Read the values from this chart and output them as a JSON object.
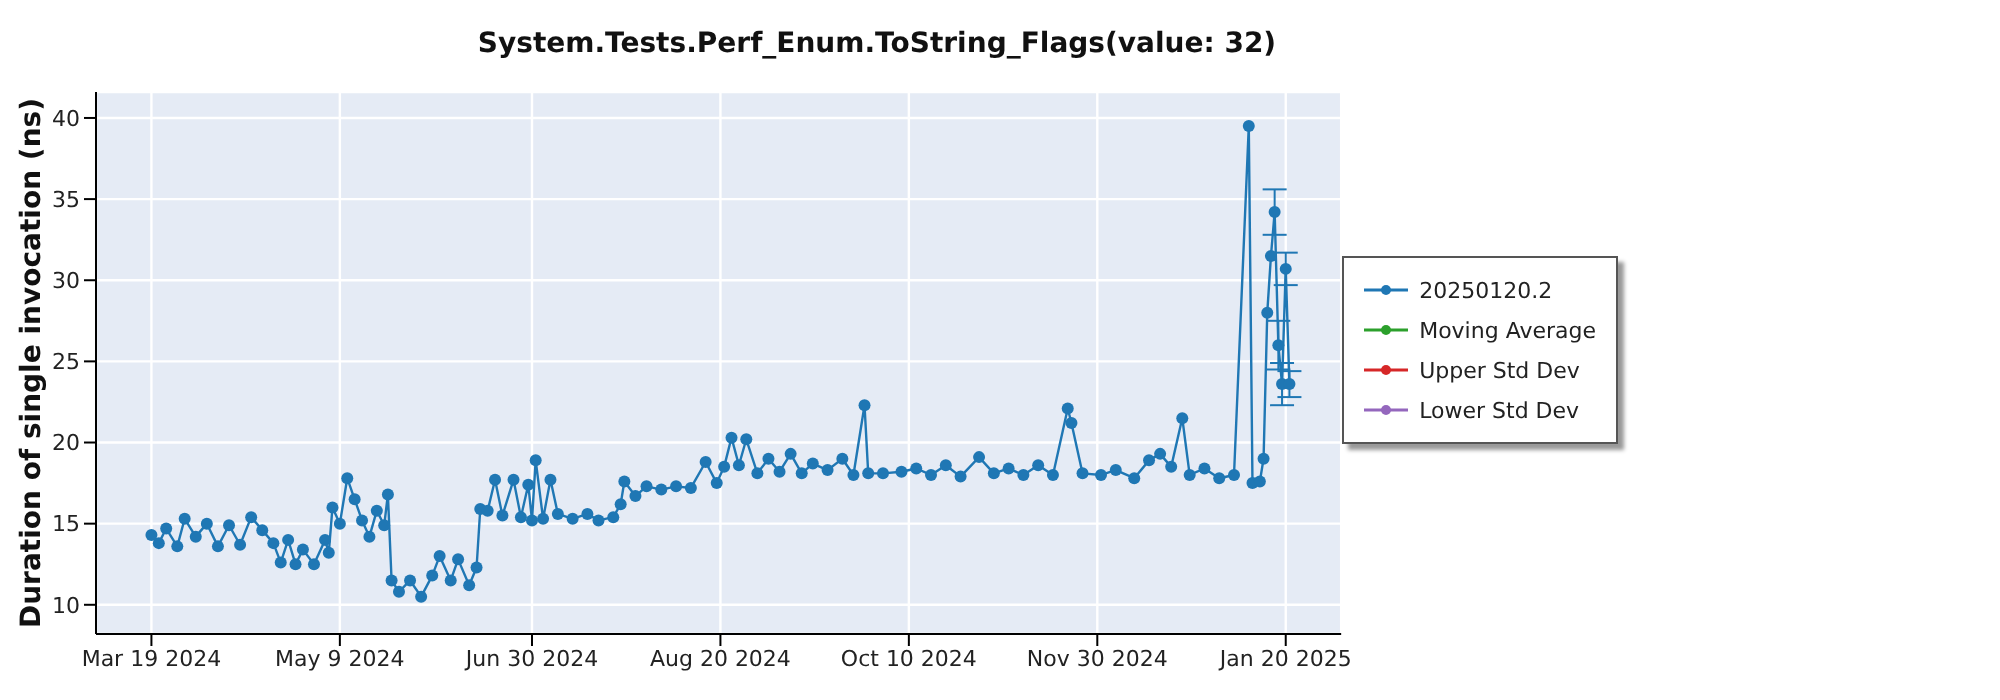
{
  "chart_data": {
    "type": "line",
    "title": "System.Tests.Perf_Enum.ToString_Flags(value: 32)",
    "ylabel": "Duration of single invocation (ns)",
    "x": [
      "2024-03-19",
      "2024-03-21",
      "2024-03-23",
      "2024-03-26",
      "2024-03-28",
      "2024-03-31",
      "2024-04-03",
      "2024-04-06",
      "2024-04-09",
      "2024-04-12",
      "2024-04-15",
      "2024-04-18",
      "2024-04-21",
      "2024-04-23",
      "2024-04-25",
      "2024-04-27",
      "2024-04-29",
      "2024-05-02",
      "2024-05-05",
      "2024-05-06",
      "2024-05-07",
      "2024-05-09",
      "2024-05-11",
      "2024-05-13",
      "2024-05-15",
      "2024-05-17",
      "2024-05-19",
      "2024-05-21",
      "2024-05-22",
      "2024-05-23",
      "2024-05-25",
      "2024-05-28",
      "2024-05-31",
      "2024-06-03",
      "2024-06-05",
      "2024-06-08",
      "2024-06-10",
      "2024-06-13",
      "2024-06-15",
      "2024-06-16",
      "2024-06-18",
      "2024-06-20",
      "2024-06-22",
      "2024-06-25",
      "2024-06-27",
      "2024-06-29",
      "2024-06-30",
      "2024-07-01",
      "2024-07-03",
      "2024-07-05",
      "2024-07-07",
      "2024-07-11",
      "2024-07-15",
      "2024-07-18",
      "2024-07-22",
      "2024-07-24",
      "2024-07-25",
      "2024-07-28",
      "2024-07-31",
      "2024-08-04",
      "2024-08-08",
      "2024-08-12",
      "2024-08-16",
      "2024-08-19",
      "2024-08-21",
      "2024-08-23",
      "2024-08-25",
      "2024-08-27",
      "2024-08-30",
      "2024-09-02",
      "2024-09-05",
      "2024-09-08",
      "2024-09-11",
      "2024-09-14",
      "2024-09-18",
      "2024-09-22",
      "2024-09-25",
      "2024-09-28",
      "2024-09-29",
      "2024-10-03",
      "2024-10-08",
      "2024-10-12",
      "2024-10-16",
      "2024-10-20",
      "2024-10-24",
      "2024-10-29",
      "2024-11-02",
      "2024-11-06",
      "2024-11-10",
      "2024-11-14",
      "2024-11-18",
      "2024-11-22",
      "2024-11-23",
      "2024-11-26",
      "2024-12-01",
      "2024-12-05",
      "2024-12-10",
      "2024-12-14",
      "2024-12-17",
      "2024-12-20",
      "2024-12-23",
      "2024-12-25",
      "2024-12-29",
      "2025-01-02",
      "2025-01-06",
      "2025-01-10",
      "2025-01-11",
      "2025-01-13",
      "2025-01-14",
      "2025-01-15",
      "2025-01-16",
      "2025-01-17",
      "2025-01-18",
      "2025-01-19",
      "2025-01-20",
      "2025-01-21"
    ],
    "series": [
      {
        "name": "20250120.2",
        "color": "#1f77b4",
        "values": [
          14.3,
          13.8,
          14.7,
          13.6,
          15.3,
          14.2,
          15.0,
          13.6,
          14.9,
          13.7,
          15.4,
          14.6,
          13.8,
          12.6,
          14.0,
          12.5,
          13.4,
          12.5,
          14.0,
          13.2,
          16.0,
          15.0,
          17.8,
          16.5,
          15.2,
          14.2,
          15.8,
          14.9,
          16.8,
          11.5,
          10.8,
          11.5,
          10.5,
          11.8,
          13.0,
          11.5,
          12.8,
          11.2,
          12.3,
          15.9,
          15.8,
          17.7,
          15.5,
          17.7,
          15.4,
          17.4,
          15.2,
          18.9,
          15.3,
          17.7,
          15.6,
          15.3,
          15.6,
          15.2,
          15.4,
          16.2,
          17.6,
          16.7,
          17.3,
          17.1,
          17.3,
          17.2,
          18.8,
          17.5,
          18.5,
          20.3,
          18.6,
          20.2,
          18.1,
          19.0,
          18.2,
          19.3,
          18.1,
          18.7,
          18.3,
          19.0,
          18.0,
          22.3,
          18.1,
          18.1,
          18.2,
          18.4,
          18.0,
          18.6,
          17.9,
          19.1,
          18.1,
          18.4,
          18.0,
          18.6,
          18.0,
          22.1,
          21.2,
          18.1,
          18.0,
          18.3,
          17.8,
          18.9,
          19.3,
          18.5,
          21.5,
          18.0,
          18.4,
          17.8,
          18.0,
          39.5,
          17.5,
          17.6,
          19.0,
          28.0,
          31.5,
          34.2,
          26.0,
          23.6,
          30.7,
          23.6
        ],
        "errors": [
          null,
          null,
          null,
          null,
          null,
          null,
          null,
          null,
          null,
          null,
          null,
          null,
          null,
          null,
          null,
          null,
          null,
          null,
          null,
          null,
          null,
          null,
          null,
          null,
          null,
          null,
          null,
          null,
          null,
          null,
          null,
          null,
          null,
          null,
          null,
          null,
          null,
          null,
          null,
          null,
          null,
          null,
          null,
          null,
          null,
          null,
          null,
          null,
          null,
          null,
          null,
          null,
          null,
          null,
          null,
          null,
          null,
          null,
          null,
          null,
          null,
          null,
          null,
          null,
          null,
          null,
          null,
          null,
          null,
          null,
          null,
          null,
          null,
          null,
          null,
          null,
          null,
          null,
          null,
          null,
          null,
          null,
          null,
          null,
          null,
          null,
          null,
          null,
          null,
          null,
          null,
          null,
          null,
          null,
          null,
          null,
          null,
          null,
          null,
          null,
          null,
          null,
          null,
          null,
          null,
          null,
          null,
          null,
          null,
          null,
          null,
          1.4,
          1.5,
          1.3,
          1.0,
          0.8
        ]
      },
      {
        "name": "Moving Average",
        "color": "#2ca02c",
        "values": [
          null,
          null,
          null,
          null,
          null,
          null,
          null,
          null,
          null,
          null,
          null,
          null,
          null,
          null,
          null,
          null,
          null,
          null,
          null,
          null,
          null,
          null,
          null,
          null,
          null,
          null,
          null,
          null,
          null,
          null,
          null,
          null,
          null,
          null,
          null,
          null,
          null,
          null,
          null,
          null,
          null,
          null,
          null,
          null,
          null,
          null,
          null,
          null,
          null,
          null,
          null,
          null,
          null,
          null,
          null,
          null,
          null,
          null,
          null,
          null,
          null,
          null,
          null,
          null,
          null,
          null,
          null,
          null,
          null,
          null,
          null,
          null,
          null,
          null,
          null,
          null,
          null,
          null,
          null,
          null,
          null,
          null,
          null,
          null,
          null,
          null,
          null,
          null,
          null,
          null,
          null,
          null,
          null,
          null,
          null,
          null,
          null,
          null,
          null,
          null,
          null,
          null,
          null,
          null,
          null,
          null,
          null,
          null,
          null,
          null,
          null,
          null,
          null,
          null,
          null,
          null
        ]
      },
      {
        "name": "Upper Std Dev",
        "color": "#d62728",
        "values": [
          null,
          null,
          null,
          null,
          null,
          null,
          null,
          null,
          null,
          null,
          null,
          null,
          null,
          null,
          null,
          null,
          null,
          null,
          null,
          null,
          null,
          null,
          null,
          null,
          null,
          null,
          null,
          null,
          null,
          null,
          null,
          null,
          null,
          null,
          null,
          null,
          null,
          null,
          null,
          null,
          null,
          null,
          null,
          null,
          null,
          null,
          null,
          null,
          null,
          null,
          null,
          null,
          null,
          null,
          null,
          null,
          null,
          null,
          null,
          null,
          null,
          null,
          null,
          null,
          null,
          null,
          null,
          null,
          null,
          null,
          null,
          null,
          null,
          null,
          null,
          null,
          null,
          null,
          null,
          null,
          null,
          null,
          null,
          null,
          null,
          null,
          null,
          null,
          null,
          null,
          null,
          null,
          null,
          null,
          null,
          null,
          null,
          null,
          null,
          null,
          null,
          null,
          null,
          null,
          null,
          null,
          null,
          null,
          null,
          null,
          null,
          null,
          null,
          null,
          null,
          null
        ]
      },
      {
        "name": "Lower Std Dev",
        "color": "#9467bd",
        "values": [
          null,
          null,
          null,
          null,
          null,
          null,
          null,
          null,
          null,
          null,
          null,
          null,
          null,
          null,
          null,
          null,
          null,
          null,
          null,
          null,
          null,
          null,
          null,
          null,
          null,
          null,
          null,
          null,
          null,
          null,
          null,
          null,
          null,
          null,
          null,
          null,
          null,
          null,
          null,
          null,
          null,
          null,
          null,
          null,
          null,
          null,
          null,
          null,
          null,
          null,
          null,
          null,
          null,
          null,
          null,
          null,
          null,
          null,
          null,
          null,
          null,
          null,
          null,
          null,
          null,
          null,
          null,
          null,
          null,
          null,
          null,
          null,
          null,
          null,
          null,
          null,
          null,
          null,
          null,
          null,
          null,
          null,
          null,
          null,
          null,
          null,
          null,
          null,
          null,
          null,
          null,
          null,
          null,
          null,
          null,
          null,
          null,
          null,
          null,
          null,
          null,
          null,
          null,
          null,
          null,
          null,
          null,
          null,
          null,
          null,
          null,
          null,
          null,
          null,
          null,
          null
        ]
      }
    ],
    "xlim": [
      "2024-03-04",
      "2025-02-04"
    ],
    "xticks": [
      {
        "value": "2024-03-19",
        "label": "Mar 19 2024"
      },
      {
        "value": "2024-05-09",
        "label": "May 9 2024"
      },
      {
        "value": "2024-06-30",
        "label": "Jun 30 2024"
      },
      {
        "value": "2024-08-20",
        "label": "Aug 20 2024"
      },
      {
        "value": "2024-10-10",
        "label": "Oct 10 2024"
      },
      {
        "value": "2024-11-30",
        "label": "Nov 30 2024"
      },
      {
        "value": "2025-01-20",
        "label": "Jan 20 2025"
      }
    ],
    "ylim": [
      8.2,
      41.6
    ],
    "yticks": [
      10,
      15,
      20,
      25,
      30,
      35,
      40
    ],
    "grid": true,
    "legend": "right",
    "marker": "circle",
    "line_style": "solid"
  }
}
